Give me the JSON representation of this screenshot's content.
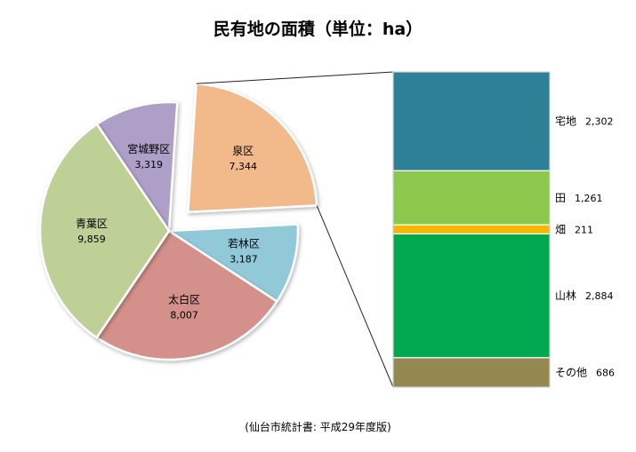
{
  "chart_data": {
    "title": "民有地の面積（単位：ha）",
    "source": "(仙台市統計書: 平成29年度版)",
    "charts": [
      {
        "type": "pie",
        "slices": [
          {
            "label": "宮城野区",
            "value": 3319,
            "value_label": "3,319",
            "color": "#ae9fc8"
          },
          {
            "label": "泉区",
            "value": 7344,
            "value_label": "7,344",
            "color": "#f2b98a",
            "exploded": true
          },
          {
            "label": "若林区",
            "value": 3187,
            "value_label": "3,187",
            "color": "#92c9d8"
          },
          {
            "label": "太白区",
            "value": 8007,
            "value_label": "8,007",
            "color": "#d4908a"
          },
          {
            "label": "青葉区",
            "value": 9859,
            "value_label": "9,859",
            "color": "#bfd097"
          }
        ]
      },
      {
        "type": "bar",
        "stacked": true,
        "breakdown_of": "泉区",
        "segments": [
          {
            "label": "宅地",
            "value": 2302,
            "value_label": "2,302",
            "color": "#2e8096"
          },
          {
            "label": "田",
            "value": 1261,
            "value_label": "1,261",
            "color": "#8cc84b"
          },
          {
            "label": "畑",
            "value": 211,
            "value_label": "211",
            "color": "#f5b800"
          },
          {
            "label": "山林",
            "value": 2884,
            "value_label": "2,884",
            "color": "#00a94f"
          },
          {
            "label": "その他",
            "value": 686,
            "value_label": "686",
            "color": "#938950"
          }
        ]
      }
    ]
  }
}
